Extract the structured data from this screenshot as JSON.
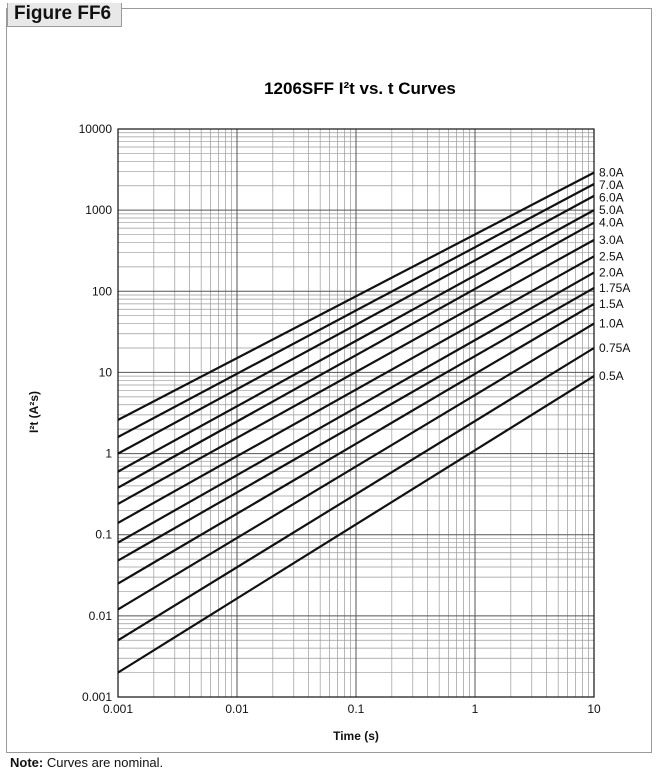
{
  "figure_tag": "Figure FF6",
  "note": {
    "label": "Note:",
    "text": " Curves are nominal."
  },
  "chart_data": {
    "type": "line",
    "title": "1206SFF I²t  vs. t Curves",
    "xlabel": "Time (s)",
    "ylabel": "I²t (A²s)",
    "x_scale": "log",
    "y_scale": "log",
    "xlim": [
      0.001,
      10
    ],
    "ylim": [
      0.001,
      10000
    ],
    "x_ticks": [
      "0.001",
      "0.01",
      "0.1",
      "1",
      "10"
    ],
    "y_ticks": [
      "0.001",
      "0.01",
      "0.1",
      "1",
      "10",
      "100",
      "1000",
      "10000"
    ],
    "grid": true,
    "legend": "labels at right end of curves",
    "line_color": "#111111",
    "series": [
      {
        "name": "8.0A",
        "x": [
          0.001,
          10
        ],
        "y": [
          2.6,
          2900
        ]
      },
      {
        "name": "7.0A",
        "x": [
          0.001,
          10
        ],
        "y": [
          1.6,
          2100
        ]
      },
      {
        "name": "6.0A",
        "x": [
          0.001,
          10
        ],
        "y": [
          1.0,
          1500
        ]
      },
      {
        "name": "5.0A",
        "x": [
          0.001,
          10
        ],
        "y": [
          0.6,
          1000
        ]
      },
      {
        "name": "4.0A",
        "x": [
          0.001,
          10
        ],
        "y": [
          0.38,
          700
        ]
      },
      {
        "name": "3.0A",
        "x": [
          0.001,
          10
        ],
        "y": [
          0.24,
          430
        ]
      },
      {
        "name": "2.5A",
        "x": [
          0.001,
          10
        ],
        "y": [
          0.14,
          270
        ]
      },
      {
        "name": "2.0A",
        "x": [
          0.001,
          10
        ],
        "y": [
          0.08,
          170
        ]
      },
      {
        "name": "1.75A",
        "x": [
          0.001,
          10
        ],
        "y": [
          0.048,
          110
        ]
      },
      {
        "name": "1.5A",
        "x": [
          0.001,
          10
        ],
        "y": [
          0.025,
          70
        ]
      },
      {
        "name": "1.0A",
        "x": [
          0.001,
          10
        ],
        "y": [
          0.012,
          40
        ]
      },
      {
        "name": "0.75A",
        "x": [
          0.001,
          10
        ],
        "y": [
          0.005,
          20
        ]
      },
      {
        "name": "0.5A",
        "x": [
          0.001,
          10
        ],
        "y": [
          0.002,
          9
        ]
      }
    ]
  }
}
